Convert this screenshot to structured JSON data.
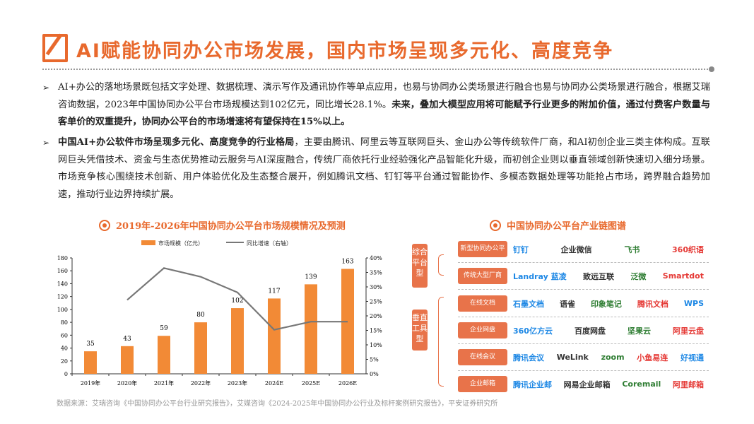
{
  "header": {
    "title": "AI赋能协同办公市场发展，国内市场呈现多元化、高度竞争"
  },
  "bullets": [
    {
      "normal": "AI+办公的落地场景既包括文字处理、数据梳理、演示写作及通讯协作等单点应用，也易与协同办公类场景进行融合也易与协同办公类场景进行融合，根据艾瑞咨询数据，2023年中国协同办公平台市场规模达到102亿元，同比增长28.1%。",
      "bold": "未来，叠加大模型应用将可能赋予行业更多的附加价值，通过付费客户数量与客单价的双重提升，协同办公平台的市场增速将有望保持在15%以上。"
    },
    {
      "bold": "中国AI+办公软件市场呈现多元化、高度竞争的行业格局",
      "normal": "，主要由腾讯、阿里云等互联网巨头、金山办公等传统软件厂商，和AI初创企业三类主体构成。互联网巨头凭借技术、资金与生态优势推动云服务与AI深度融合，传统厂商依托行业经验强化产品智能化升级，而初创企业则以垂直领域创新快速切入细分场景。市场竞争核心围绕技术创新、用户体验优化及生态整合展开，例如腾讯文档、钉钉等平台通过智能协作、多模态数据处理等功能抢占市场，跨界融合趋势加速，推动行业边界持续扩展。"
    }
  ],
  "chart_data": {
    "type": "bar+line",
    "title": "2019年-2026年中国协同办公平台市场规模情况及预测",
    "categories": [
      "2019年",
      "2020年",
      "2021年",
      "2022年",
      "2023年",
      "2024E",
      "2025E",
      "2026E"
    ],
    "series": [
      {
        "name": "市场规模（亿元）",
        "type": "bar",
        "axis": "left",
        "values": [
          35,
          43,
          59,
          80,
          102,
          117,
          139,
          163
        ],
        "color": "#F28A36"
      },
      {
        "name": "同比增速（右轴）",
        "type": "line",
        "axis": "right",
        "values": [
          null,
          25.5,
          36.5,
          33.5,
          28.1,
          15.2,
          18,
          18
        ],
        "color": "#777777"
      }
    ],
    "y_left": {
      "min": 0,
      "max": 180,
      "ticks": [
        "0",
        "20",
        "40",
        "60",
        "80",
        "100",
        "120",
        "140",
        "160",
        "180"
      ]
    },
    "y_right": {
      "min": 0,
      "max": 40,
      "ticks": [
        "0%",
        "5%",
        "10%",
        "15%",
        "20%",
        "25%",
        "30%",
        "35%",
        "40%"
      ]
    },
    "legend": "top",
    "grid": false
  },
  "diagram": {
    "title": "中国协同办公平台产业链图谱",
    "groups": [
      "综合平台型",
      "垂直工具型"
    ],
    "rows": [
      {
        "label": "新型协同办公平台",
        "logos": [
          "钉钉",
          "企业微信",
          "飞书",
          "360织语"
        ]
      },
      {
        "label": "传统大型厂商",
        "logos": [
          "Landray 蓝凌",
          "致远互联",
          "泛微",
          "Smartdot"
        ]
      },
      {
        "label": "在线文档",
        "logos": [
          "石墨文档",
          "语雀",
          "印象笔记",
          "腾讯文档",
          "WPS"
        ]
      },
      {
        "label": "企业网盘",
        "logos": [
          "360亿方云",
          "百度网盘",
          "坚果云",
          "阿里云盘"
        ]
      },
      {
        "label": "在线会议",
        "logos": [
          "腾讯会议",
          "WeLink",
          "zoom",
          "小鱼易连",
          "好视通"
        ]
      },
      {
        "label": "企业邮箱",
        "logos": [
          "腾讯企业邮",
          "网易企业邮箱",
          "Coremail",
          "阿里邮箱"
        ]
      }
    ],
    "logo_colors": [
      "#1E88E5",
      "#333333",
      "#2E7D32",
      "#E53935"
    ]
  },
  "source": "数据来源：艾瑞咨询《中国协同办公平台行业研究报告》，艾媒咨询《2024-2025年中国协同办公行业及标杆案例研究报告》，平安证券研究所"
}
